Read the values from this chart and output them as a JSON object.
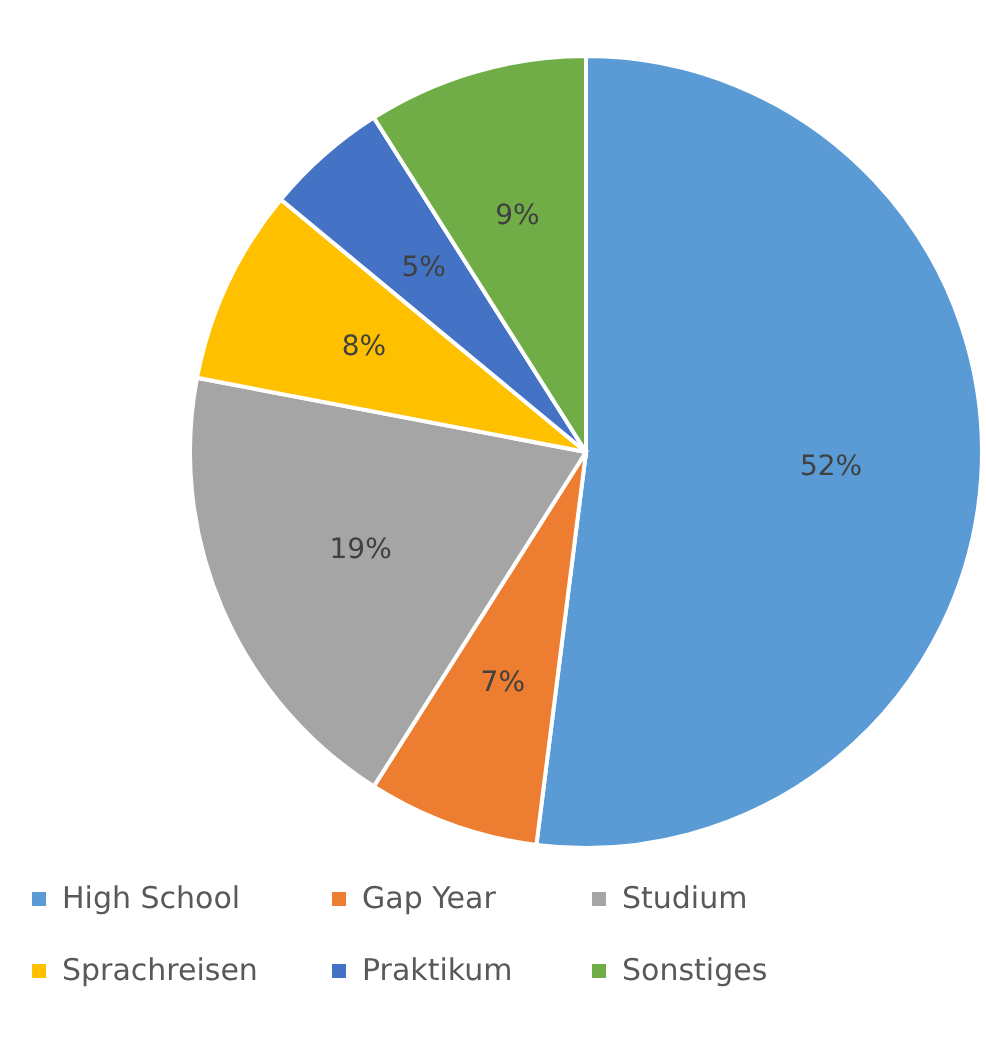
{
  "chart_data": {
    "type": "pie",
    "categories": [
      "High School",
      "Gap Year",
      "Studium",
      "Sprachreisen",
      "Praktikum",
      "Sonstiges"
    ],
    "values": [
      52,
      7,
      19,
      8,
      5,
      9
    ],
    "colors": [
      "#5b9bd5",
      "#ed7d31",
      "#a5a5a5",
      "#ffc000",
      "#4472c4",
      "#70ad47"
    ],
    "value_labels": [
      "52%",
      "7%",
      "19%",
      "8%",
      "5%",
      "9%"
    ],
    "legend": "bottom"
  }
}
